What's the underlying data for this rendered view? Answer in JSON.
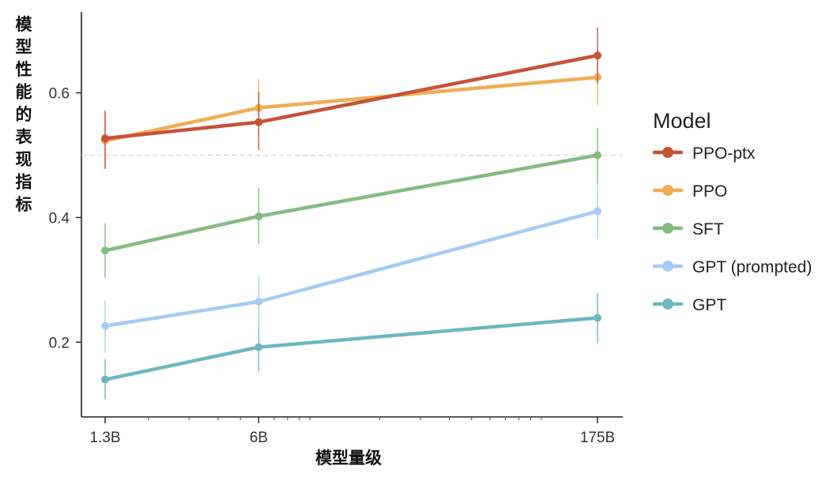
{
  "chart_data": {
    "type": "line",
    "title": "",
    "xlabel": "模型量级",
    "ylabel": "模型性能的表现指标",
    "x_scale": "log",
    "categories": [
      "1.3B",
      "6B",
      "175B"
    ],
    "x": [
      1.3,
      6,
      175
    ],
    "yticks": [
      "0.2",
      "0.4",
      "0.6"
    ],
    "ylim": [
      0.08,
      0.73
    ],
    "reference_line": 0.5,
    "legend_title": "Model",
    "legend_position": "right",
    "grid": false,
    "series": [
      {
        "name": "PPO-ptx",
        "color": "#c4533a",
        "values": [
          0.527,
          0.553,
          0.66
        ],
        "err_low": [
          0.478,
          0.508,
          0.615
        ],
        "err_high": [
          0.572,
          0.601,
          0.705
        ]
      },
      {
        "name": "PPO",
        "color": "#efae55",
        "values": [
          0.523,
          0.576,
          0.625
        ],
        "err_low": [
          0.478,
          0.532,
          0.58
        ],
        "err_high": [
          0.568,
          0.622,
          0.67
        ]
      },
      {
        "name": "SFT",
        "color": "#84bb82",
        "values": [
          0.347,
          0.402,
          0.5
        ],
        "err_low": [
          0.303,
          0.358,
          0.455
        ],
        "err_high": [
          0.391,
          0.447,
          0.544
        ]
      },
      {
        "name": "GPT (prompted)",
        "color": "#a6cbf3",
        "values": [
          0.226,
          0.265,
          0.41
        ],
        "err_low": [
          0.183,
          0.222,
          0.365
        ],
        "err_high": [
          0.267,
          0.305,
          0.455
        ]
      },
      {
        "name": "GPT",
        "color": "#6db7c2",
        "values": [
          0.14,
          0.192,
          0.239
        ],
        "err_low": [
          0.108,
          0.153,
          0.198
        ],
        "err_high": [
          0.173,
          0.232,
          0.279
        ]
      }
    ]
  }
}
